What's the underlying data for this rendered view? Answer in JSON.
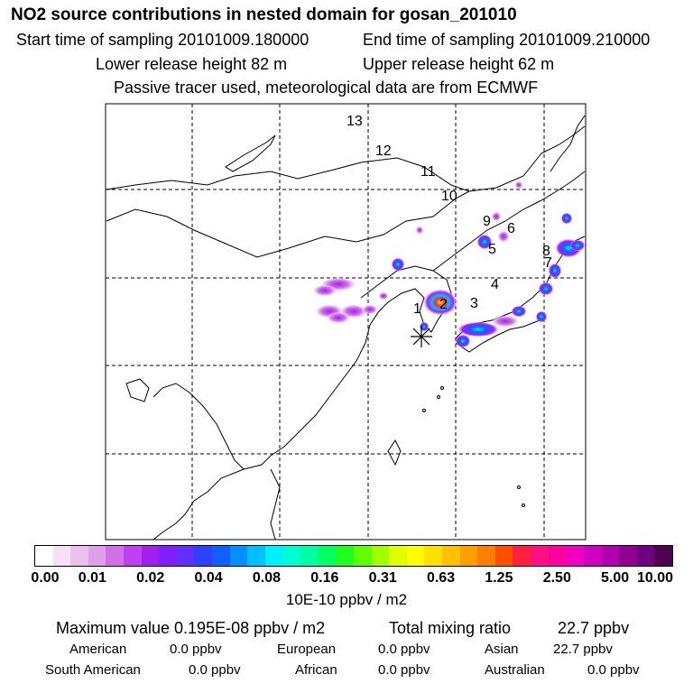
{
  "header": {
    "title": "NO2 source contributions in nested domain for gosan_201010",
    "start_time": "Start time of sampling 20101009.180000",
    "end_time": "End time of sampling 20101009.210000",
    "lower_height": "Lower release height   82 m",
    "upper_height": "Upper release height   62 m",
    "tracer_note": "Passive tracer used, meteorological data are from ECMWF"
  },
  "map": {
    "track_labels": [
      "13",
      "12",
      "11",
      "10",
      "9",
      "6",
      "5",
      "8",
      "7",
      "4",
      "3",
      "2",
      "1"
    ],
    "receptor": "gosan"
  },
  "colorbar": {
    "ticks": [
      "0.00",
      "0.01",
      "0.02",
      "0.04",
      "0.08",
      "0.16",
      "0.31",
      "0.63",
      "1.25",
      "2.50",
      "5.00",
      "10.00"
    ],
    "colors": [
      "#ffffff",
      "#f5e0f5",
      "#ecc0ec",
      "#e0a0e8",
      "#d070e8",
      "#bf40f0",
      "#a020f0",
      "#8020f8",
      "#6030ff",
      "#3040ff",
      "#1060ff",
      "#0090ff",
      "#00c0ff",
      "#00f0ff",
      "#00ffd0",
      "#00ffa0",
      "#00ff60",
      "#20ff20",
      "#60ff00",
      "#a0ff00",
      "#e0ff00",
      "#ffff00",
      "#ffe000",
      "#ffc000",
      "#ffa000",
      "#ff8000",
      "#ff5000",
      "#ff2040",
      "#ff1080",
      "#ff00a0",
      "#f000c0",
      "#d000c0",
      "#b000b0",
      "#900090",
      "#700080",
      "#500050"
    ],
    "unit": "10E-10 ppbv / m2"
  },
  "stats": {
    "max_label": "Maximum value  0.195E-08 ppbv / m2",
    "total_label": "Total mixing ratio",
    "total_value": "22.7 ppbv"
  },
  "regions": [
    {
      "name": "American",
      "value": "0.0 ppbv"
    },
    {
      "name": "European",
      "value": "0.0 ppbv"
    },
    {
      "name": "Asian",
      "value": "22.7 ppbv"
    },
    {
      "name": "South American",
      "value": "0.0 ppbv"
    },
    {
      "name": "African",
      "value": "0.0 ppbv"
    },
    {
      "name": "Australian",
      "value": "0.0 ppbv"
    }
  ]
}
